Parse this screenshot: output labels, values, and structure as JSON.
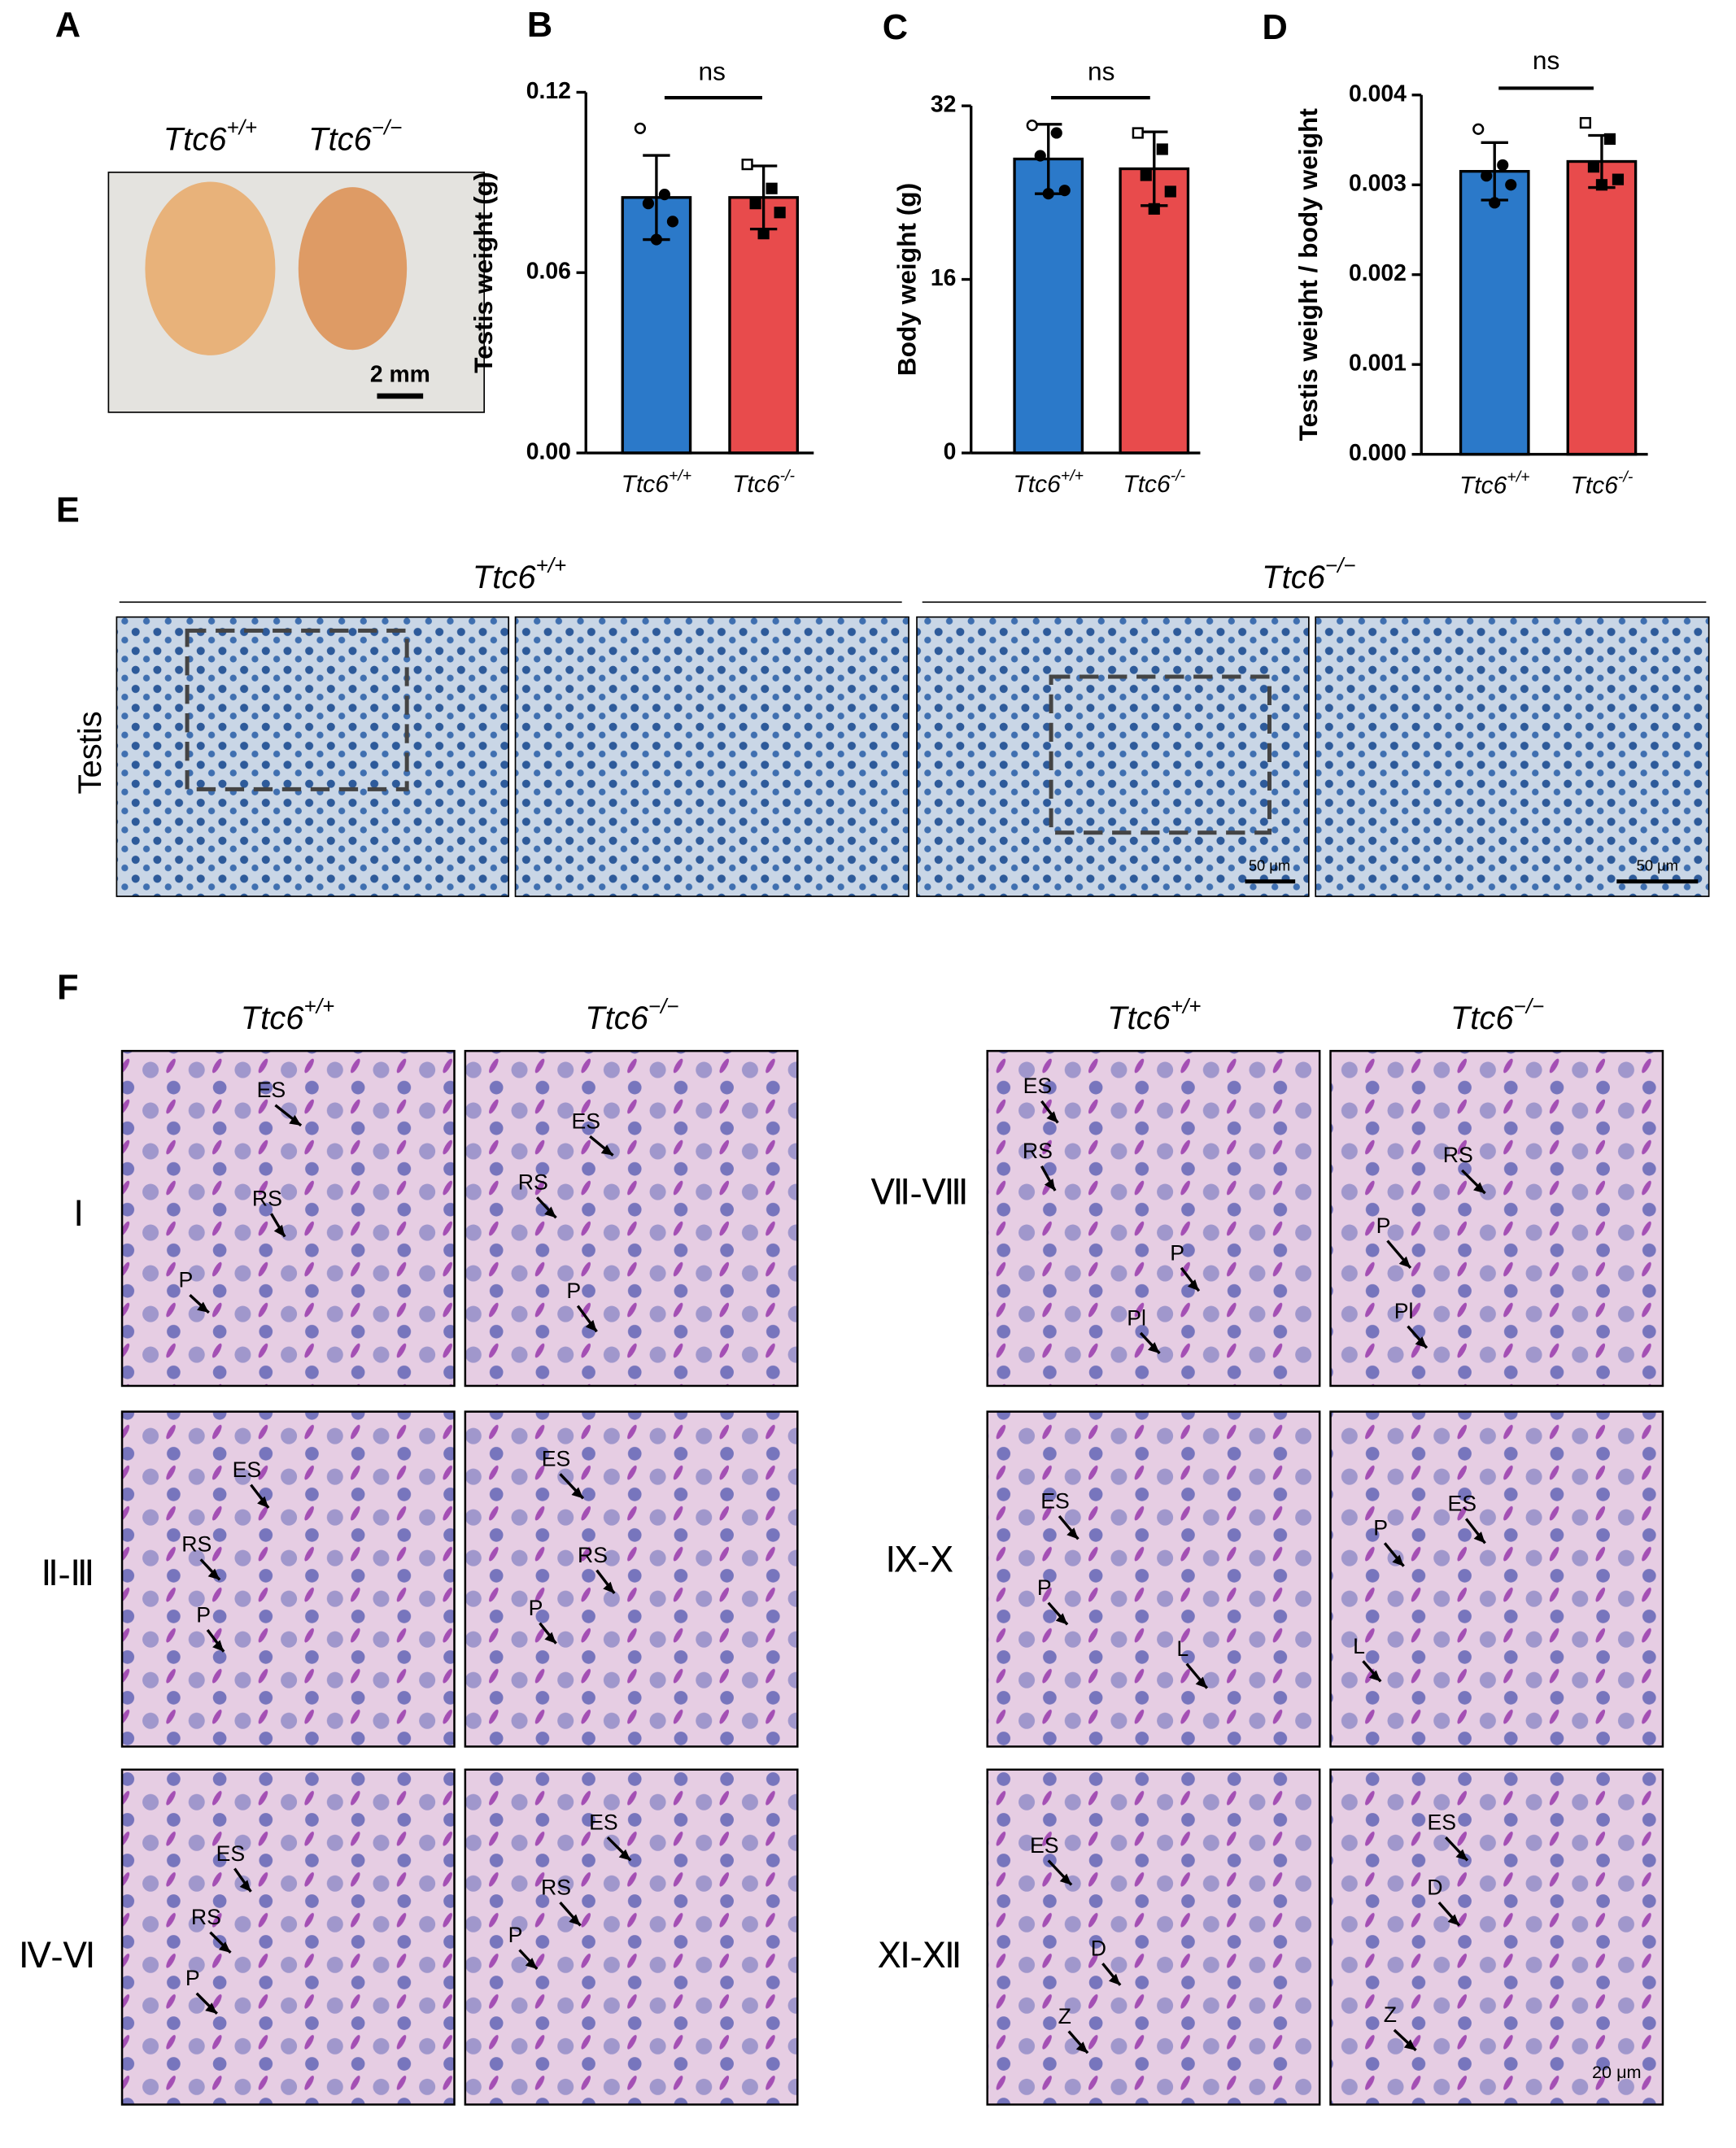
{
  "panel_labels": [
    "A",
    "B",
    "C",
    "D",
    "E",
    "F"
  ],
  "panel_a": {
    "genotypes": [
      "Ttc6+/+",
      "Ttc6−/−"
    ],
    "scale_bar": "2 mm"
  },
  "chart_data": [
    {
      "type": "bar",
      "ylabel": "Testis weight (g)",
      "annotation": "ns",
      "categories": [
        "Ttc6+/+",
        "Ttc6-/-"
      ],
      "colors": [
        "#2b79c9",
        "#e84b4c"
      ],
      "values": [
        0.085,
        0.085
      ],
      "errors": [
        0.014,
        0.0105
      ],
      "points": [
        [
          0.108,
          0.086,
          0.083,
          0.077,
          0.071
        ],
        [
          0.096,
          0.088,
          0.083,
          0.08,
          0.073
        ]
      ],
      "ylim": [
        0,
        0.12
      ],
      "yticks": [
        {
          "value": 0,
          "label": "0.00"
        },
        0.06,
        0.12
      ]
    },
    {
      "type": "bar",
      "ylabel": "Body weight (g)",
      "annotation": "ns",
      "categories": [
        "Ttc6+/+",
        "Ttc6-/-"
      ],
      "colors": [
        "#2b79c9",
        "#e84b4c"
      ],
      "values": [
        27.1,
        26.2
      ],
      "errors": [
        3.2,
        3.4
      ],
      "points": [
        [
          30.2,
          29.5,
          27.4,
          24.2,
          23.9
        ],
        [
          29.5,
          28.0,
          25.6,
          24.1,
          22.5
        ]
      ],
      "ylim": [
        0,
        32
      ],
      "yticks": [
        0,
        16,
        32
      ]
    },
    {
      "type": "bar",
      "ylabel": "Testis weight / body weight",
      "annotation": "ns",
      "categories": [
        "Ttc6+/+",
        "Ttc6-/-"
      ],
      "colors": [
        "#2b79c9",
        "#e84b4c"
      ],
      "values": [
        0.00315,
        0.00326
      ],
      "errors": [
        0.00032,
        0.00029
      ],
      "points": [
        [
          0.00362,
          0.00322,
          0.0031,
          0.003,
          0.0028
        ],
        [
          0.00369,
          0.00351,
          0.0032,
          0.00306,
          0.003
        ]
      ],
      "ylim": [
        0,
        0.004
      ],
      "yticks": [
        {
          "value": 0,
          "label": "0.000"
        },
        0.001,
        0.002,
        0.003,
        0.004
      ]
    }
  ],
  "panel_e": {
    "headers": [
      "Ttc6+/+",
      "Ttc6−/−"
    ],
    "row_label": "Testis",
    "scale_bars": [
      "50 μm",
      "50 μm"
    ]
  },
  "panel_f": {
    "column_headers": [
      "Ttc6+/+",
      "Ttc6−/−",
      "Ttc6+/+",
      "Ttc6−/−"
    ],
    "stages": [
      "Ⅰ",
      "Ⅱ-Ⅲ",
      "Ⅳ-Ⅵ",
      "Ⅶ-Ⅷ",
      "Ⅸ-Ⅹ",
      "Ⅺ-Ⅻ"
    ],
    "annotations": [
      [
        "ES",
        "RS",
        "P"
      ],
      [
        "ES",
        "RS",
        "P"
      ],
      [
        "ES",
        "RS",
        "P",
        "Pl"
      ],
      [
        "RS",
        "P",
        "Pl"
      ],
      [
        "ES",
        "RS",
        "P"
      ],
      [
        "ES",
        "RS",
        "P"
      ],
      [
        "ES",
        "P",
        "L"
      ],
      [
        "P",
        "ES",
        "L"
      ],
      [
        "ES",
        "RS",
        "P"
      ],
      [
        "ES",
        "RS",
        "P"
      ],
      [
        "ES",
        "D",
        "Z"
      ],
      [
        "ES",
        "D",
        "Z"
      ]
    ],
    "scale_bar": "20 μm"
  }
}
